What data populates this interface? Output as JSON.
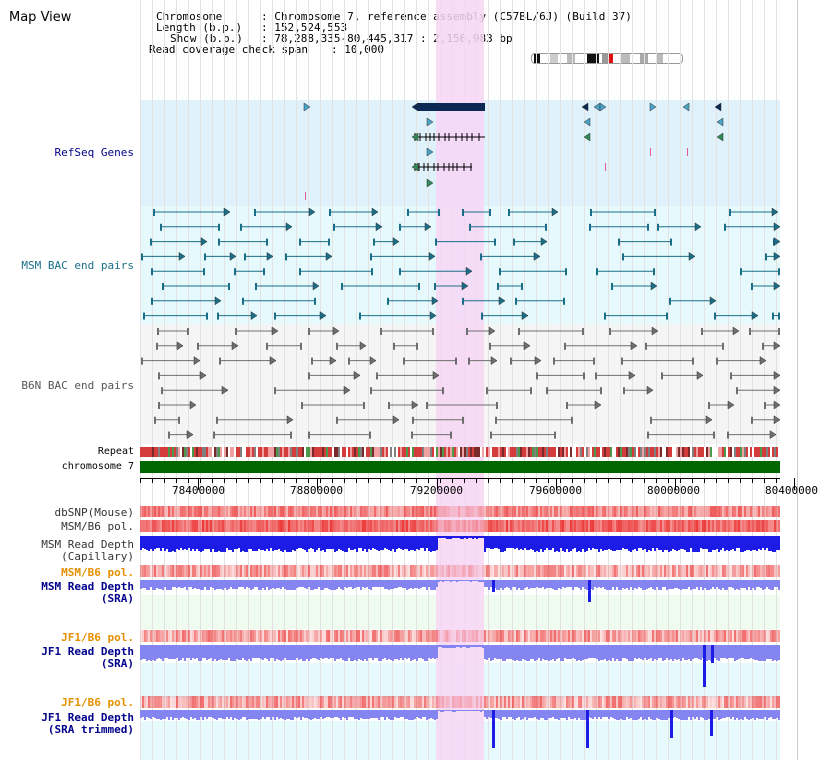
{
  "title": "Map View",
  "info": {
    "chromosome_label": "Chromosome",
    "chromosome_value": ": Chromosome 7, reference assembly (C57BL/6J) (Build 37)",
    "length_label": "Length (b.p.)",
    "length_value": ": 152,524,553",
    "show_label": "Show (b.p.)",
    "show_value": ": 78,288,335-80,445,317 : 2,156,983 bp",
    "coverage_label": "Read coverage check span",
    "coverage_value": ": 10,000"
  },
  "tracks": {
    "refseq": "RefSeq Genes",
    "msm_bac": "MSM BAC end pairs",
    "b6n_bac": "B6N BAC end pairs",
    "repeat": "Repeat",
    "chromosome": "chromosome 7",
    "dbsnp": "dbSNP(Mouse)",
    "msm_b6_pol_1": "MSM/B6 pol.",
    "msm_depth_cap_1": "MSM Read Depth",
    "msm_depth_cap_2": "(Capillary)",
    "msm_b6_pol_2": "MSM/B6 pol.",
    "msm_depth_sra_1": "MSM Read Depth",
    "msm_depth_sra_2": "(SRA)",
    "jf1_pol_1": "JF1/B6 pol.",
    "jf1_depth_sra_1": "JF1 Read Depth",
    "jf1_depth_sra_2": "(SRA)",
    "jf1_pol_2": "JF1/B6 pol.",
    "jf1_depth_trim_1": "JF1 Read Depth",
    "jf1_depth_trim_2": "(SRA trimmed)"
  },
  "axis": {
    "ticks": [
      "78400000",
      "78800000",
      "79200000",
      "79600000",
      "80000000",
      "80400000"
    ]
  },
  "colors": {
    "highlight": "#f7d6f4",
    "refseq_bg": "#dff1fa",
    "msm_bac_bg": "#e6fafe",
    "b6n_bac_bg": "#f5f5f5",
    "chromosome": "#006600",
    "gene_dark": "#0a2a55",
    "msm_pair": "#1a6e88",
    "b6n_pair": "#6e6e6e",
    "depth_blue": "#1c1ce6",
    "depth_light": "#8585f2",
    "pol_red": "#ec3b3b",
    "label_blue": "#00008b",
    "label_orange": "#e69000"
  }
}
